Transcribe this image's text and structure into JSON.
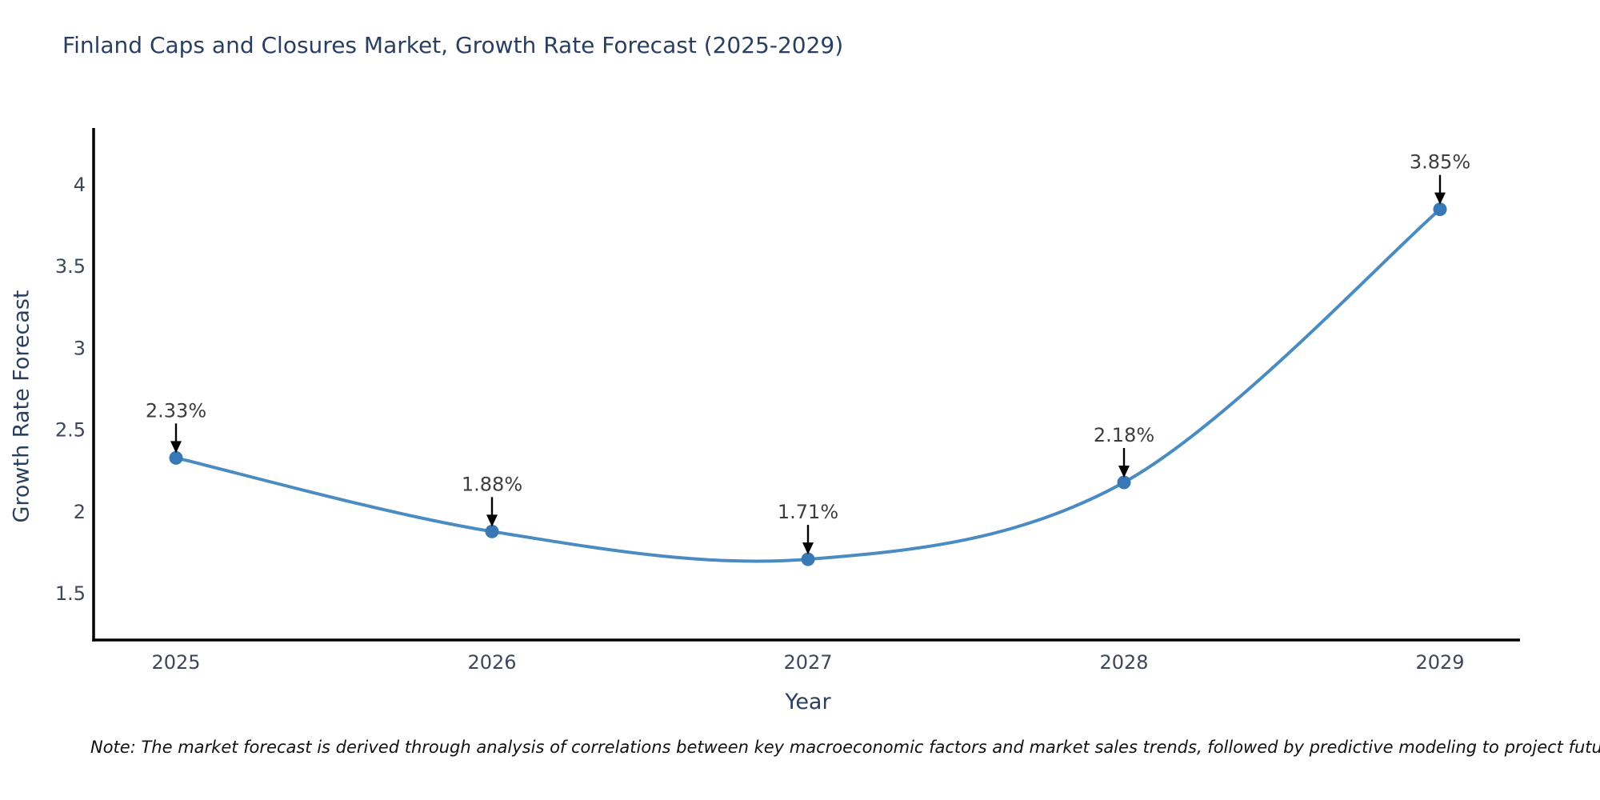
{
  "note": "Note: The market forecast is derived through analysis of correlations between key macroeconomic factors and market sales trends, followed by predictive modeling to project future sales.",
  "chart_data": {
    "type": "line",
    "title": "Finland Caps and Closures Market, Growth Rate Forecast (2025-2029)",
    "xlabel": "Year",
    "ylabel": "Growth Rate Forecast",
    "categories": [
      "2025",
      "2026",
      "2027",
      "2028",
      "2029"
    ],
    "values": [
      2.33,
      1.88,
      1.71,
      2.18,
      3.85
    ],
    "point_labels": [
      "2.33%",
      "1.88%",
      "1.71%",
      "2.18%",
      "3.85%"
    ],
    "y_ticks": [
      1.5,
      2,
      2.5,
      3,
      3.5,
      4
    ],
    "ylim": [
      1.2,
      4.35
    ],
    "line_shape": "spline",
    "grid": false,
    "legend": "none",
    "colors": {
      "line": "#4a8bc2",
      "marker": "#3879b5",
      "axis": "#000000",
      "title": "#2a3f5f",
      "tick": "#3e4759",
      "annotation": "#3d3d3d",
      "arrow": "#000000"
    }
  }
}
